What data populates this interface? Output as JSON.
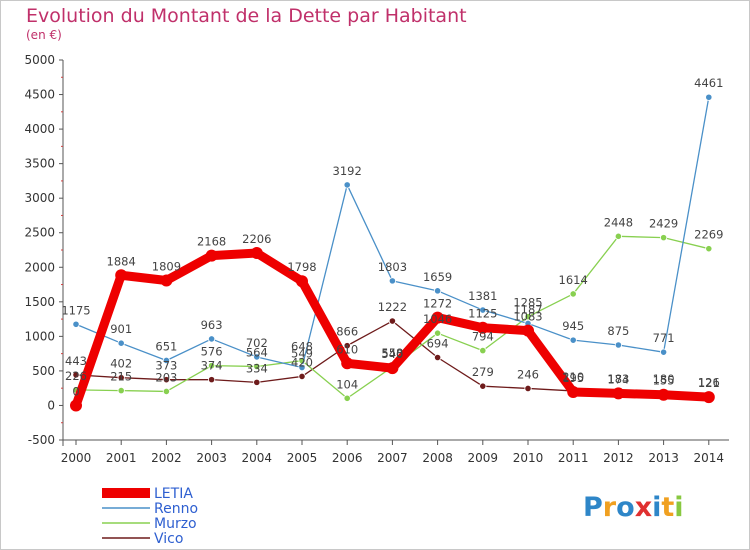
{
  "chart_data": {
    "type": "line",
    "title": "Evolution du Montant de la Dette par Habitant",
    "subtitle": "(en €)",
    "x": [
      "2000",
      "2001",
      "2002",
      "2003",
      "2004",
      "2005",
      "2006",
      "2007",
      "2008",
      "2009",
      "2010",
      "2011",
      "2012",
      "2013",
      "2014"
    ],
    "ylim": [
      -500,
      5000
    ],
    "yticks": [
      "-500",
      "0",
      "500",
      "1000",
      "1500",
      "2000",
      "2500",
      "3000",
      "3500",
      "4000",
      "4500",
      "5000"
    ],
    "grid": false,
    "legend_position": "bottom-left",
    "series": [
      {
        "name": "LETIA",
        "color": "#ee0000",
        "values": [
          0,
          1884,
          1809,
          2168,
          2206,
          1798,
          610,
          540,
          1272,
          1125,
          1083,
          195,
          174,
          155,
          121
        ]
      },
      {
        "name": "Renno",
        "color": "#4a90c8",
        "values": [
          1175,
          901,
          651,
          963,
          702,
          549,
          3192,
          1803,
          1659,
          1381,
          1187,
          945,
          875,
          771,
          4461
        ]
      },
      {
        "name": "Murzo",
        "color": "#88d050",
        "values": [
          226,
          215,
          203,
          576,
          564,
          648,
          104,
          558,
          1046,
          794,
          1285,
          1614,
          2448,
          2429,
          2269
        ]
      },
      {
        "name": "Vico",
        "color": "#6e1b1b",
        "values": [
          443,
          402,
          373,
          374,
          334,
          420,
          866,
          1222,
          694,
          279,
          246,
          210,
          183,
          180,
          126
        ]
      }
    ]
  },
  "branding": {
    "logo_letters": [
      {
        "ch": "P",
        "color": "#2e86c8"
      },
      {
        "ch": "r",
        "color": "#f0a020"
      },
      {
        "ch": "o",
        "color": "#2e86c8"
      },
      {
        "ch": "x",
        "color": "#e03030"
      },
      {
        "ch": "i",
        "color": "#2e86c8"
      },
      {
        "ch": "t",
        "color": "#f0a020"
      },
      {
        "ch": "i",
        "color": "#88c840"
      }
    ]
  }
}
